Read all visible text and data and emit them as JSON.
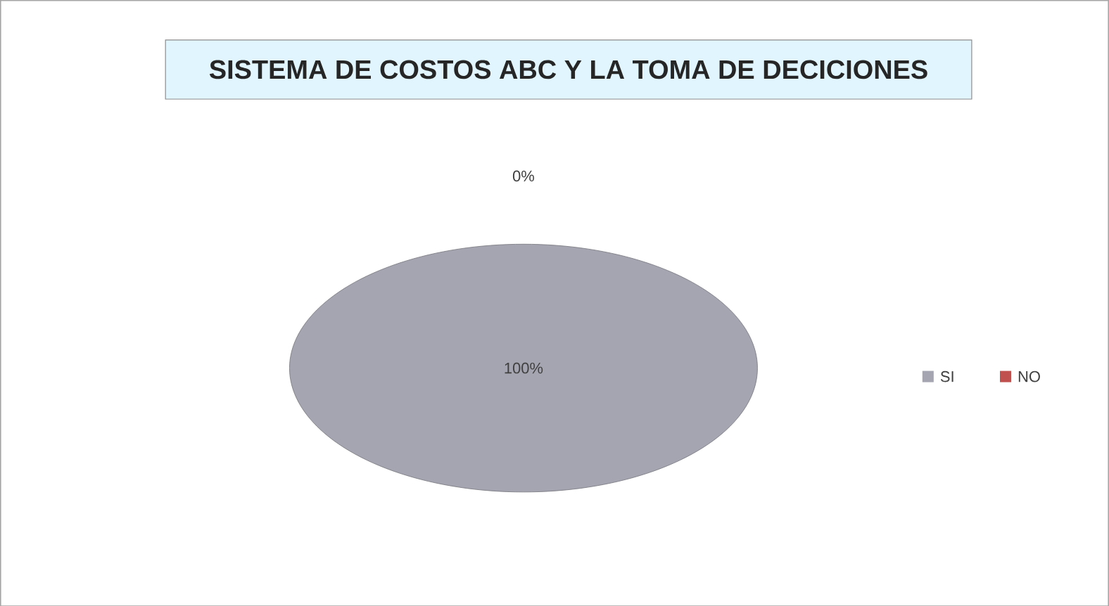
{
  "chart_data": {
    "type": "pie",
    "title": "SISTEMA DE COSTOS ABC Y LA TOMA DE DECICIONES",
    "categories": [
      "SI",
      "NO"
    ],
    "values": [
      100,
      0
    ],
    "value_labels": [
      "100%",
      "0%"
    ],
    "colors": [
      "#a4a5b0",
      "#c0504d"
    ],
    "legend": "right"
  }
}
